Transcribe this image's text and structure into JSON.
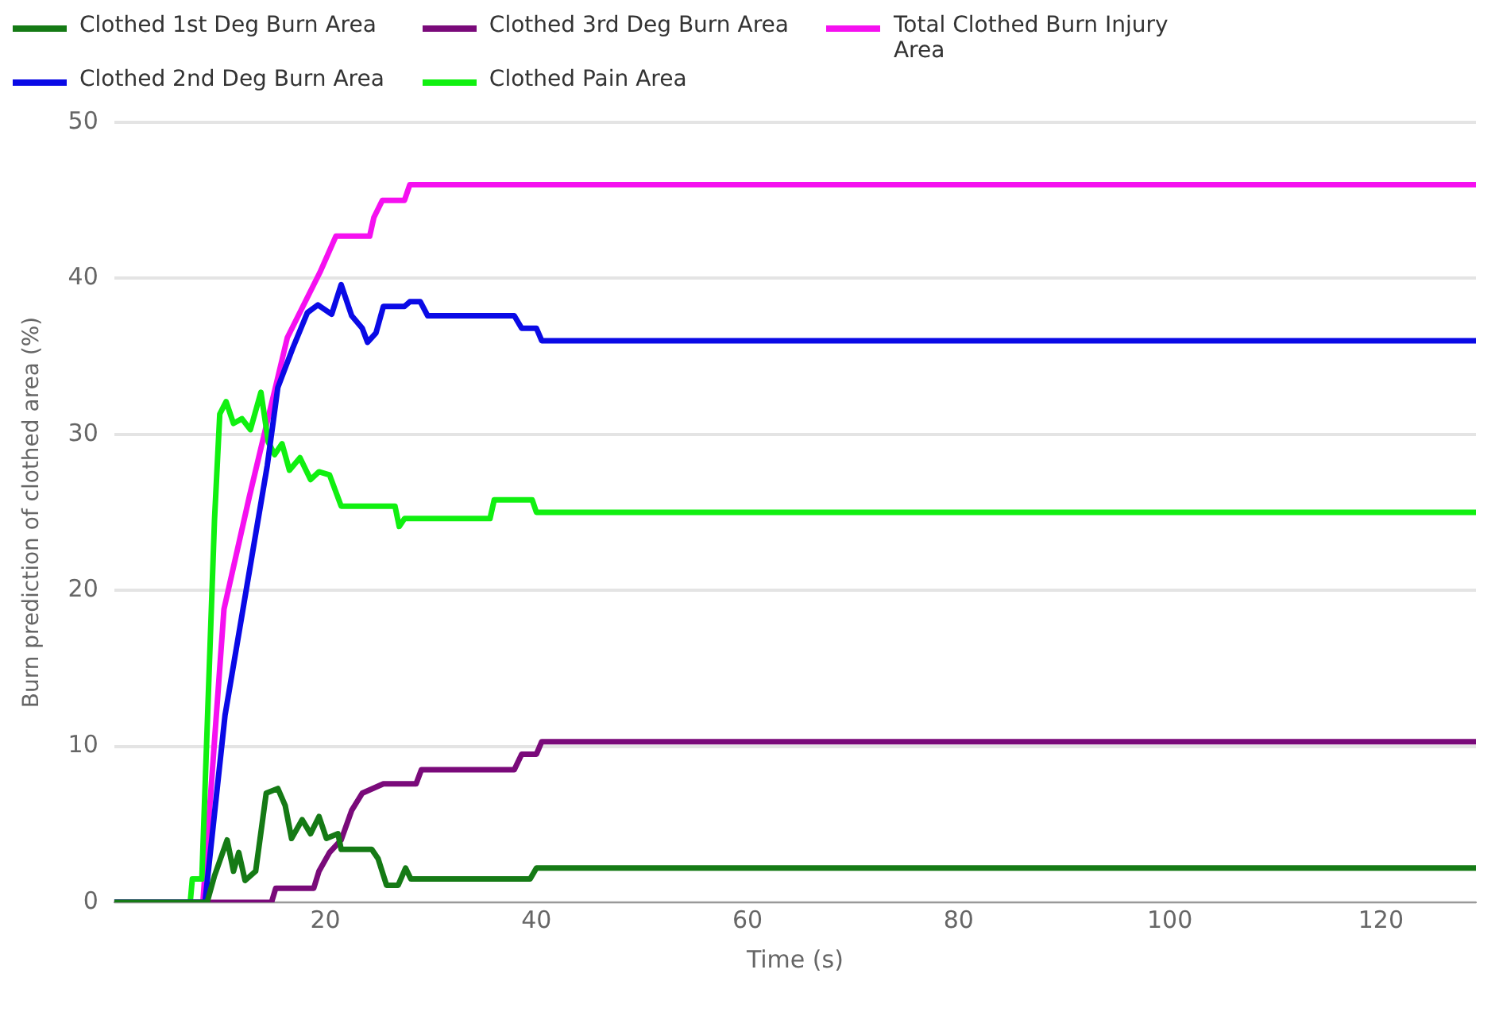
{
  "chart_data": {
    "type": "line",
    "xlabel": "Time (s)",
    "ylabel": "Burn prediction of clothed area (%)",
    "xlim": [
      0,
      129
    ],
    "xticks": [
      20,
      40,
      60,
      80,
      100,
      120
    ],
    "ylim": [
      0,
      50
    ],
    "yticks": [
      0,
      10,
      20,
      30,
      40,
      50
    ],
    "grid": "y",
    "legend": "top",
    "marker": "none",
    "line_style": "solid",
    "series": [
      {
        "name": "Clothed 1st Deg Burn Area",
        "color": "#157a15",
        "x": [
          0,
          8.8,
          9.5,
          10.7,
          11.3,
          11.8,
          12.4,
          13.4,
          14.4,
          15.5,
          16.2,
          16.8,
          17.8,
          18.6,
          19.4,
          20.1,
          21.2,
          21.5,
          24.4,
          25,
          25.8,
          26.9,
          27.6,
          28.1,
          39.4,
          40,
          129
        ],
        "values": [
          0,
          0,
          1.7,
          4,
          2,
          3.2,
          1.4,
          2,
          7,
          7.3,
          6.2,
          4.1,
          5.3,
          4.4,
          5.5,
          4.1,
          4.4,
          3.4,
          3.4,
          2.8,
          1.1,
          1.1,
          2.2,
          1.5,
          1.5,
          2.2,
          2.2
        ]
      },
      {
        "name": "Clothed 2nd Deg Burn Area",
        "color": "#0a0ae6",
        "x": [
          0,
          8.6,
          10.5,
          13,
          14.5,
          15.5,
          16.9,
          18.3,
          19.3,
          20.6,
          21.5,
          22.5,
          23.5,
          24,
          24.8,
          25.5,
          27.5,
          28,
          29,
          29.7,
          37.9,
          38.6,
          40,
          40.5,
          129
        ],
        "values": [
          0,
          0,
          12,
          22,
          28,
          33,
          35.5,
          37.8,
          38.3,
          37.7,
          39.6,
          37.6,
          36.8,
          35.9,
          36.5,
          38.2,
          38.2,
          38.5,
          38.5,
          37.6,
          37.6,
          36.8,
          36.8,
          36,
          36
        ]
      },
      {
        "name": "Clothed 3rd Deg Burn Area",
        "color": "#7a0a7a",
        "x": [
          0,
          14.9,
          15.3,
          18.9,
          19.4,
          20.4,
          21.5,
          22.5,
          23.5,
          25.5,
          28.6,
          29.1,
          37.9,
          38.6,
          40,
          40.5,
          129
        ],
        "values": [
          0,
          0,
          0.9,
          0.9,
          2,
          3.2,
          4,
          5.9,
          7,
          7.6,
          7.6,
          8.5,
          8.5,
          9.5,
          9.5,
          10.3,
          10.3
        ]
      },
      {
        "name": "Clothed Pain Area",
        "color": "#10f010",
        "x": [
          0,
          7.2,
          7.4,
          8.3,
          9.5,
          10,
          10.6,
          11.3,
          12.1,
          12.9,
          13.9,
          14.6,
          15.2,
          15.9,
          16.6,
          17.6,
          18.6,
          19.4,
          20.4,
          21.5,
          26.6,
          27,
          27.5,
          35.6,
          36,
          39.6,
          40,
          129
        ],
        "values": [
          0,
          0,
          1.5,
          1.5,
          24.5,
          31.3,
          32.1,
          30.7,
          31,
          30.3,
          32.7,
          29.5,
          28.7,
          29.4,
          27.7,
          28.5,
          27.1,
          27.6,
          27.4,
          25.4,
          25.4,
          24.1,
          24.6,
          24.6,
          25.8,
          25.8,
          25,
          25
        ]
      },
      {
        "name": "Total Clothed Burn Injury Area",
        "color": "#f510f0",
        "x": [
          0,
          8.4,
          10.4,
          12.8,
          16.4,
          19.5,
          21,
          24.2,
          24.6,
          25.4,
          27.5,
          28,
          129
        ],
        "values": [
          0,
          0,
          18.8,
          26,
          36.2,
          40.4,
          42.7,
          42.7,
          43.9,
          45,
          45,
          46,
          46
        ]
      }
    ]
  }
}
